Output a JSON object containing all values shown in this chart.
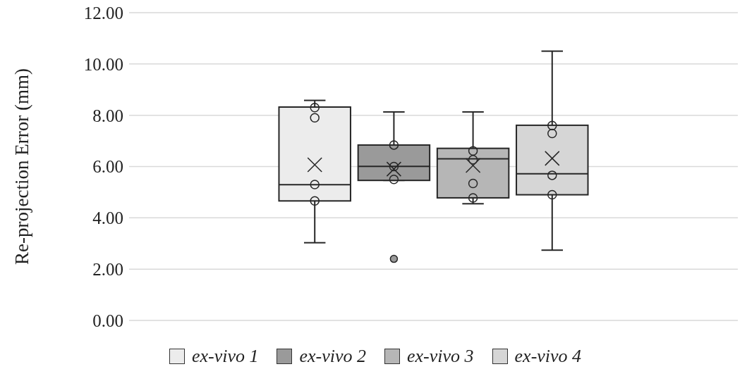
{
  "chart_data": {
    "type": "box",
    "ylabel": "Re-projection Error (mm)",
    "categories": [
      null
    ],
    "ylim": [
      0,
      12
    ],
    "yticks": [
      {
        "value": 0,
        "label": "0.00"
      },
      {
        "value": 2,
        "label": "2.00"
      },
      {
        "value": 4,
        "label": "4.00"
      },
      {
        "value": 6,
        "label": "6.00"
      },
      {
        "value": 8,
        "label": "8.00"
      },
      {
        "value": 10,
        "label": "10.00"
      },
      {
        "value": 12,
        "label": "12.00"
      }
    ],
    "grid": "y",
    "legend": "bottom",
    "marker": "circle",
    "series": [
      {
        "name": "ex-vivo 1",
        "color": "#ececec",
        "boxes": [
          {
            "low": 3.03,
            "q1": 4.66,
            "median": 5.29,
            "q3": 8.32,
            "high": 8.58,
            "mean": 6.07
          }
        ]
      },
      {
        "name": "ex-vivo 2",
        "color": "#9a9a9a",
        "boxes": [
          {
            "low": 5.46,
            "q1": 5.46,
            "median": 6.01,
            "q3": 6.84,
            "high": 8.13,
            "mean": 5.9,
            "outliers": [
              2.4
            ]
          }
        ]
      },
      {
        "name": "ex-vivo 3",
        "color": "#b6b6b6",
        "boxes": [
          {
            "low": 4.55,
            "q1": 4.78,
            "median": 6.3,
            "q3": 6.71,
            "high": 8.13,
            "mean": 6.04
          }
        ]
      },
      {
        "name": "ex-vivo 4",
        "color": "#d6d6d6",
        "boxes": [
          {
            "low": 2.74,
            "q1": 4.9,
            "median": 5.72,
            "q3": 7.61,
            "high": 10.5,
            "mean": 6.32
          }
        ]
      },
      {
        "type": "scatter",
        "color": "#262626",
        "x": [
          null,
          null,
          null,
          null
        ],
        "values": [
          8.3,
          7.9,
          5.3,
          4.66
        ]
      },
      {
        "type": "scatter",
        "color": "#262626",
        "x": [
          null,
          null,
          null
        ],
        "values": [
          6.84,
          6.0,
          5.5
        ]
      },
      {
        "type": "scatter",
        "color": "#262626",
        "x": [
          null,
          null,
          null,
          null
        ],
        "values": [
          6.61,
          6.27,
          5.34,
          4.78
        ]
      },
      {
        "type": "scatter",
        "color": "#262626",
        "x": [
          null,
          null,
          null,
          null
        ],
        "values": [
          7.6,
          7.29,
          5.66,
          4.9
        ]
      }
    ]
  }
}
